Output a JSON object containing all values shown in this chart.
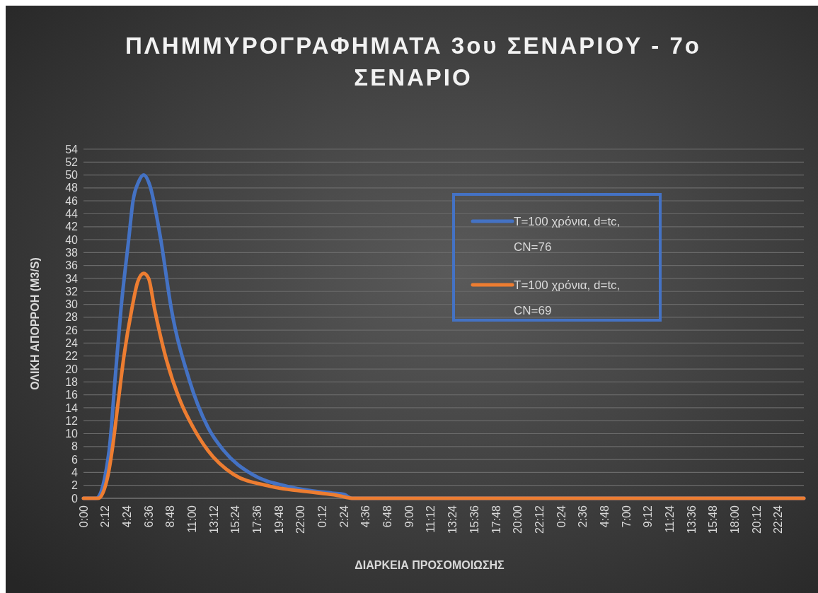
{
  "chart_data": {
    "type": "line",
    "title": "ΠΛΗΜΜΥΡΟΓΡΑΦΗΜΑΤΑ 3ου ΣΕΝΑΡΙΟΥ - 7ο ΣΕΝΑΡΙΟ",
    "xlabel": "ΔΙΑΡΚΕΙΑ ΠΡΟΣΟΜΟΙΩΣΗΣ",
    "ylabel": "ΟΛΙΚΗ ΑΠΟΡΡΟΗ (M3/S)",
    "xlim": [
      "2000-01-01T00:00",
      "2000-01-04T01:00"
    ],
    "xticks": [
      {
        "value": "2000-01-01T00:00",
        "label": "0:00"
      },
      {
        "value": "2000-01-01T02:12",
        "label": "2:12"
      },
      {
        "value": "2000-01-01T04:24",
        "label": "4:24"
      },
      {
        "value": "2000-01-01T06:36",
        "label": "6:36"
      },
      {
        "value": "2000-01-01T08:48",
        "label": "8:48"
      },
      {
        "value": "2000-01-01T11:00",
        "label": "11:00"
      },
      {
        "value": "2000-01-01T13:12",
        "label": "13:12"
      },
      {
        "value": "2000-01-01T15:24",
        "label": "15:24"
      },
      {
        "value": "2000-01-01T17:36",
        "label": "17:36"
      },
      {
        "value": "2000-01-01T19:48",
        "label": "19:48"
      },
      {
        "value": "2000-01-01T22:00",
        "label": "22:00"
      },
      {
        "value": "2000-01-02T00:12",
        "label": "0:12"
      },
      {
        "value": "2000-01-02T02:24",
        "label": "2:24"
      },
      {
        "value": "2000-01-02T04:36",
        "label": "4:36"
      },
      {
        "value": "2000-01-02T06:48",
        "label": "6:48"
      },
      {
        "value": "2000-01-02T09:00",
        "label": "9:00"
      },
      {
        "value": "2000-01-02T11:12",
        "label": "11:12"
      },
      {
        "value": "2000-01-02T13:24",
        "label": "13:24"
      },
      {
        "value": "2000-01-02T15:36",
        "label": "15:36"
      },
      {
        "value": "2000-01-02T17:48",
        "label": "17:48"
      },
      {
        "value": "2000-01-02T20:00",
        "label": "20:00"
      },
      {
        "value": "2000-01-02T22:12",
        "label": "22:12"
      },
      {
        "value": "2000-01-03T00:24",
        "label": "0:24"
      },
      {
        "value": "2000-01-03T02:36",
        "label": "2:36"
      },
      {
        "value": "2000-01-03T04:48",
        "label": "4:48"
      },
      {
        "value": "2000-01-03T07:00",
        "label": "7:00"
      },
      {
        "value": "2000-01-03T09:12",
        "label": "9:12"
      },
      {
        "value": "2000-01-03T11:24",
        "label": "11:24"
      },
      {
        "value": "2000-01-03T13:36",
        "label": "13:36"
      },
      {
        "value": "2000-01-03T15:48",
        "label": "15:48"
      },
      {
        "value": "2000-01-03T18:00",
        "label": "18:00"
      },
      {
        "value": "2000-01-03T20:12",
        "label": "20:12"
      },
      {
        "value": "2000-01-03T22:24",
        "label": "22:24"
      }
    ],
    "ylim": [
      0,
      54
    ],
    "yticks": [
      0,
      2,
      4,
      6,
      8,
      10,
      12,
      14,
      16,
      18,
      20,
      22,
      24,
      26,
      28,
      30,
      32,
      34,
      36,
      38,
      40,
      42,
      44,
      46,
      48,
      50,
      52,
      54
    ],
    "grid": "y",
    "legend": "top right",
    "line_style": "solid",
    "marker": "none",
    "series": [
      {
        "name": "T=100 χρόνια, d=tc, CN=76",
        "color": "#4472c4",
        "x": [
          "2000-01-01T00:00",
          "2000-01-01T01:18",
          "2000-01-01T02:36",
          "2000-01-01T03:12",
          "2000-01-01T03:48",
          "2000-01-01T04:36",
          "2000-01-01T05:00",
          "2000-01-01T05:36",
          "2000-01-01T06:06",
          "2000-01-01T06:42",
          "2000-01-01T07:48",
          "2000-01-01T08:54",
          "2000-01-01T10:42",
          "2000-01-01T12:36",
          "2000-01-01T14:12",
          "2000-01-01T17:06",
          "2000-01-01T20:30",
          "2000-01-02T01:12",
          "2000-01-02T02:24",
          "2000-01-02T03:12",
          "2000-01-04T01:00"
        ],
        "values": [
          0,
          0,
          7.4,
          18.4,
          29.3,
          40.3,
          45.8,
          49,
          50,
          48.5,
          40.3,
          29.3,
          18.4,
          11,
          7.4,
          3.7,
          1.9,
          0.8,
          0.6,
          0,
          0
        ]
      },
      {
        "name": "T=100 χρόνια, d=tc, CN=69",
        "color": "#ed7d31",
        "x": [
          "2000-01-01T00:00",
          "2000-01-01T01:30",
          "2000-01-01T02:30",
          "2000-01-01T02:54",
          "2000-01-01T03:30",
          "2000-01-01T04:06",
          "2000-01-01T04:54",
          "2000-01-01T05:30",
          "2000-01-01T06:06",
          "2000-01-01T06:36",
          "2000-01-01T07:12",
          "2000-01-01T08:18",
          "2000-01-01T09:54",
          "2000-01-01T11:06",
          "2000-01-01T12:36",
          "2000-01-01T15:12",
          "2000-01-01T18:48",
          "2000-01-02T00:00",
          "2000-01-02T01:54",
          "2000-01-02T03:12",
          "2000-01-04T01:00"
        ],
        "values": [
          0,
          0,
          3.7,
          7.4,
          14.7,
          22,
          29.3,
          33.5,
          34.8,
          34,
          29.3,
          22,
          14.7,
          11,
          7.4,
          3.7,
          1.9,
          0.8,
          0.4,
          0,
          0
        ]
      }
    ]
  }
}
